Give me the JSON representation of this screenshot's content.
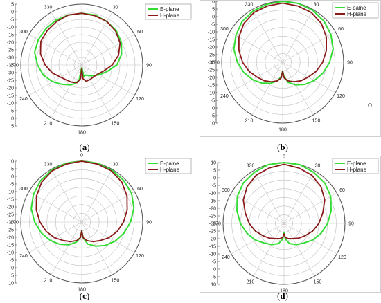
{
  "figure": {
    "labels": [
      "a",
      "b",
      "c",
      "d"
    ]
  },
  "chart_data": [
    {
      "type": "polar-line",
      "panel": "a",
      "angle_ticks": [
        "0",
        "30",
        "60",
        "90",
        "120",
        "150",
        "180",
        "210",
        "240",
        "270",
        "300",
        "330"
      ],
      "radial_range": [
        -35,
        5
      ],
      "radial_ticks": [
        5,
        0,
        -5,
        -10,
        -15,
        -20,
        -25,
        -30,
        -35
      ],
      "radial_tick_labels": [
        "5",
        "0",
        "-5",
        "-10",
        "-15",
        "-20",
        "-25",
        "-30",
        "-35",
        "-30",
        "-25",
        "-20",
        "-15",
        "-10",
        "-5",
        "0",
        "5"
      ],
      "legend": [
        "E-plane",
        "H-plane"
      ],
      "colors": {
        "E": "#33dd33",
        "H": "#8b1a1a"
      },
      "series": [
        {
          "name": "E-plane",
          "angles": [
            0,
            15,
            30,
            45,
            60,
            75,
            90,
            105,
            120,
            135,
            150,
            160,
            170,
            175,
            180,
            185,
            190,
            200,
            210,
            225,
            240,
            255,
            270,
            285,
            300,
            315,
            330,
            345,
            360
          ],
          "values": [
            -1,
            -1,
            -2,
            -3,
            -5,
            -8,
            -12,
            -18,
            -22,
            -25,
            -27,
            -28,
            -27,
            -33,
            -31,
            -33,
            -25,
            -22,
            -20,
            -17,
            -13,
            -9,
            -6,
            -3,
            -2,
            -1.5,
            -1,
            -1,
            -1
          ]
        },
        {
          "name": "H-plane",
          "angles": [
            0,
            15,
            30,
            45,
            60,
            75,
            90,
            105,
            120,
            135,
            150,
            165,
            175,
            180,
            185,
            195,
            210,
            225,
            240,
            255,
            270,
            285,
            300,
            315,
            330,
            345,
            360
          ],
          "values": [
            -1,
            -1.5,
            -2,
            -3.5,
            -6,
            -10,
            -15,
            -20,
            -23,
            -24,
            -24,
            -24,
            -26,
            -33,
            -26,
            -23,
            -22,
            -21,
            -19,
            -15,
            -11,
            -7,
            -4,
            -3,
            -2,
            -1,
            -1
          ]
        }
      ]
    },
    {
      "type": "polar-line",
      "panel": "b",
      "angle_ticks": [
        "0",
        "30",
        "60",
        "90",
        "120",
        "150",
        "180",
        "210",
        "240",
        "270",
        "300",
        "330"
      ],
      "radial_range": [
        -30,
        5
      ],
      "radial_ticks": [
        5,
        0,
        -5,
        -10,
        -15,
        -20,
        -25,
        -30
      ],
      "radial_tick_labels": [
        "10",
        "5",
        "0",
        "-5",
        "-10",
        "-15",
        "-20",
        "-25",
        "-30",
        "-25",
        "-20",
        "-15",
        "-10",
        "-5",
        "0",
        "5",
        "10"
      ],
      "legend": [
        "E-palne",
        "H-plane"
      ],
      "colors": {
        "E": "#33dd33",
        "H": "#8b1a1a"
      },
      "series": [
        {
          "name": "E-palne",
          "angles": [
            0,
            15,
            30,
            45,
            60,
            75,
            90,
            105,
            120,
            135,
            150,
            165,
            175,
            180,
            185,
            195,
            210,
            225,
            240,
            255,
            270,
            285,
            300,
            315,
            330,
            345,
            360
          ],
          "values": [
            5,
            5,
            4.5,
            3.5,
            2,
            0,
            -3,
            -6,
            -9,
            -12,
            -15,
            -18,
            -22,
            -25,
            -22,
            -19,
            -16,
            -13,
            -10,
            -7,
            -4,
            -1,
            1,
            3,
            4,
            4.5,
            5
          ]
        },
        {
          "name": "H-plane",
          "angles": [
            0,
            15,
            30,
            45,
            60,
            75,
            90,
            105,
            120,
            135,
            150,
            165,
            175,
            180,
            185,
            195,
            210,
            225,
            240,
            255,
            270,
            285,
            300,
            315,
            330,
            345,
            360
          ],
          "values": [
            4,
            3.5,
            3,
            1.5,
            -1,
            -4,
            -7,
            -10,
            -13,
            -15,
            -17,
            -19,
            -21,
            -25,
            -21,
            -19,
            -17,
            -15,
            -13,
            -10,
            -7,
            -4,
            -1,
            1.5,
            3,
            3.5,
            4
          ]
        }
      ]
    },
    {
      "type": "polar-line",
      "panel": "c",
      "angle_ticks": [
        "0",
        "30",
        "60",
        "90",
        "120",
        "150",
        "180",
        "210",
        "240",
        "270",
        "300",
        "330"
      ],
      "radial_range": [
        -30,
        5
      ],
      "radial_ticks": [
        5,
        0,
        -5,
        -10,
        -15,
        -20,
        -25,
        -30
      ],
      "radial_tick_labels": [
        "10",
        "5",
        "0",
        "-5",
        "-10",
        "-15",
        "-20",
        "-25",
        "-30",
        "-25",
        "-20",
        "-15",
        "-10",
        "-5",
        "0",
        "5",
        "10"
      ],
      "legend": [
        "E-palne",
        "H-plane"
      ],
      "colors": {
        "E": "#33dd33",
        "H": "#8b1a1a"
      },
      "series": [
        {
          "name": "E-palne",
          "angles": [
            0,
            15,
            30,
            45,
            60,
            75,
            90,
            105,
            120,
            135,
            150,
            165,
            175,
            180,
            185,
            195,
            210,
            225,
            240,
            255,
            270,
            285,
            300,
            315,
            330,
            345,
            360
          ],
          "values": [
            5,
            5,
            4.5,
            4,
            3,
            1,
            -2,
            -5,
            -8,
            -11,
            -14,
            -17,
            -21,
            -25,
            -21,
            -18,
            -15,
            -12,
            -9,
            -6,
            -3,
            0,
            2,
            3.5,
            4.5,
            5,
            5
          ]
        },
        {
          "name": "H-plane",
          "angles": [
            0,
            15,
            30,
            45,
            60,
            75,
            90,
            105,
            120,
            135,
            150,
            165,
            175,
            180,
            185,
            195,
            210,
            225,
            240,
            255,
            270,
            285,
            300,
            315,
            330,
            345,
            360
          ],
          "values": [
            5,
            4.5,
            4,
            2.5,
            0,
            -3,
            -6,
            -9,
            -12,
            -15,
            -17,
            -19,
            -21,
            -25,
            -21,
            -19,
            -17,
            -15,
            -12,
            -9,
            -6,
            -3,
            0,
            2.5,
            4,
            4.5,
            5
          ]
        }
      ]
    },
    {
      "type": "polar-line",
      "panel": "d",
      "angle_ticks": [
        "0",
        "30",
        "60",
        "90",
        "120",
        "150",
        "180",
        "210",
        "240",
        "270",
        "300",
        "330"
      ],
      "radial_range": [
        -30,
        5
      ],
      "radial_ticks": [
        5,
        0,
        -5,
        -10,
        -15,
        -20,
        -25,
        -30
      ],
      "radial_tick_labels": [
        "10",
        "5",
        "0",
        "-5",
        "-10",
        "-15",
        "-20",
        "-25",
        "-30",
        "-25",
        "-20",
        "-15",
        "-10",
        "-5",
        "0",
        "5",
        "10"
      ],
      "legend": [
        "E-plane",
        "H-plane"
      ],
      "colors": {
        "E": "#33dd33",
        "H": "#8b1a1a"
      },
      "series": [
        {
          "name": "E-plane",
          "angles": [
            0,
            15,
            30,
            45,
            60,
            75,
            90,
            105,
            120,
            135,
            150,
            165,
            175,
            180,
            185,
            195,
            210,
            225,
            240,
            255,
            270,
            285,
            300,
            315,
            330,
            345,
            360
          ],
          "values": [
            5,
            5,
            4,
            3,
            1,
            -2,
            -5,
            -8,
            -11,
            -14,
            -16,
            -18,
            -21,
            -25,
            -21,
            -18,
            -16,
            -14,
            -11,
            -8,
            -5,
            -2,
            1,
            3,
            4,
            5,
            5
          ]
        },
        {
          "name": "H-plane",
          "angles": [
            0,
            15,
            30,
            45,
            60,
            75,
            90,
            105,
            120,
            135,
            150,
            165,
            175,
            180,
            185,
            195,
            210,
            225,
            240,
            255,
            270,
            285,
            300,
            315,
            330,
            345,
            360
          ],
          "values": [
            4,
            3,
            2,
            0,
            -3,
            -7,
            -10,
            -13,
            -16,
            -18,
            -20,
            -21,
            -22,
            -24,
            -22,
            -21,
            -20,
            -18,
            -16,
            -13,
            -10,
            -7,
            -3,
            0,
            2,
            3,
            4
          ]
        }
      ]
    }
  ]
}
